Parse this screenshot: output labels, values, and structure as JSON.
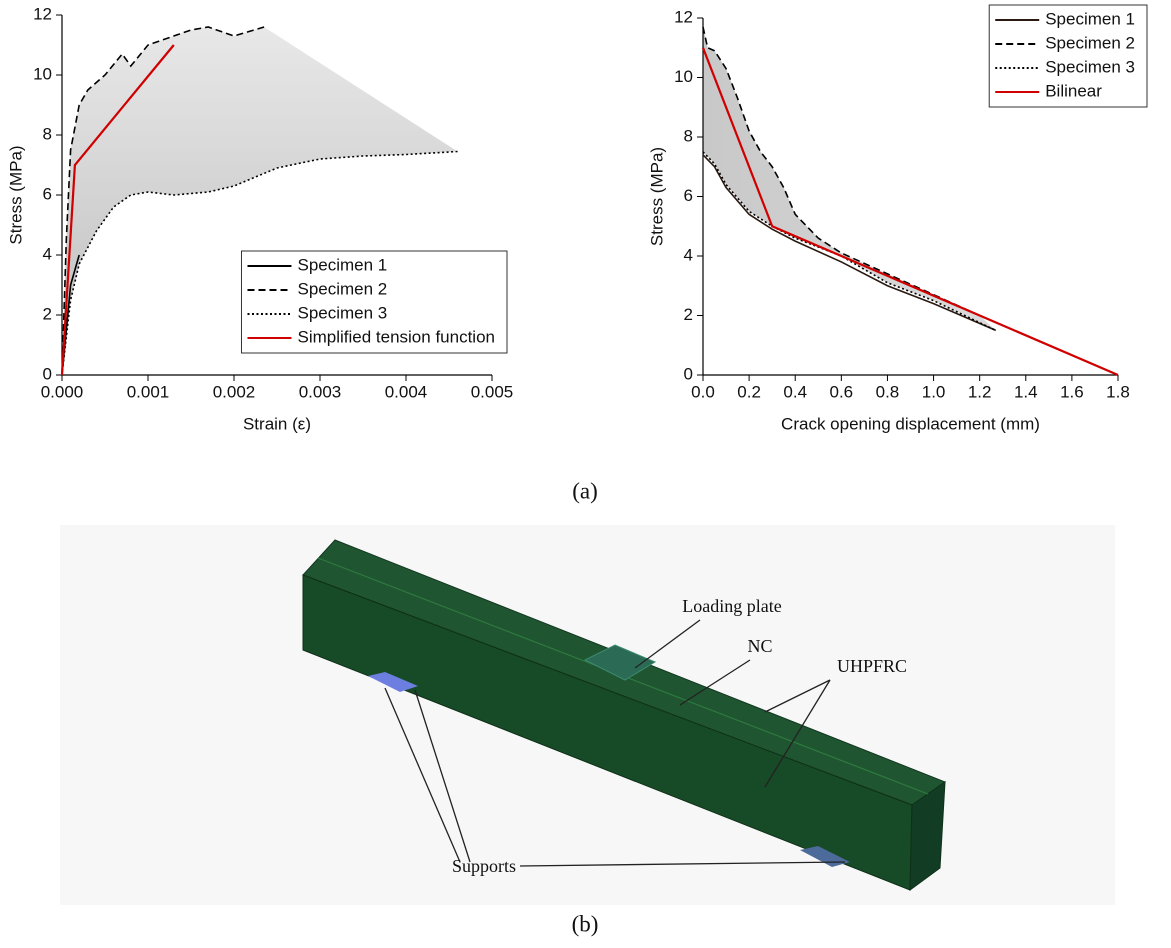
{
  "chart_data": [
    {
      "type": "line",
      "xlabel": "Strain (ε)",
      "ylabel": "Stress (MPa)",
      "xlim": [
        0,
        0.005
      ],
      "ylim": [
        0,
        12
      ],
      "xticks": [
        {
          "value": 0,
          "label": "0.000"
        },
        0.001,
        0.002,
        0.003,
        0.004,
        0.005
      ],
      "yticks": [
        0,
        2,
        4,
        6,
        8,
        10,
        12
      ],
      "legend": "lower right",
      "envelope": true,
      "series": [
        {
          "name": "Specimen 1",
          "color": "#000000",
          "dash": "solid",
          "x": [
            0,
            0.0001,
            0.0002
          ],
          "values": [
            0,
            3,
            4
          ]
        },
        {
          "name": "Specimen 2",
          "color": "#000000",
          "dash": "dashed",
          "x": [
            0,
            5e-05,
            0.0001,
            0.0002,
            0.0003,
            0.0005,
            0.0007,
            0.0008,
            0.001,
            0.0012,
            0.0015,
            0.0017,
            0.002,
            0.00235
          ],
          "values": [
            0,
            4.5,
            7.5,
            9.0,
            9.5,
            10.0,
            10.7,
            10.3,
            11.0,
            11.2,
            11.5,
            11.6,
            11.3,
            11.6
          ]
        },
        {
          "name": "Specimen 3",
          "color": "#000000",
          "dash": "dotted",
          "x": [
            0,
            0.0001,
            0.0002,
            0.0004,
            0.0006,
            0.0008,
            0.001,
            0.0013,
            0.0017,
            0.002,
            0.0025,
            0.003,
            0.0035,
            0.004,
            0.0046
          ],
          "values": [
            0,
            2.5,
            3.7,
            4.8,
            5.6,
            6.0,
            6.1,
            6.0,
            6.1,
            6.3,
            6.9,
            7.2,
            7.3,
            7.35,
            7.45
          ]
        },
        {
          "name": "Simplified tension function",
          "color": "#d00000",
          "dash": "solid",
          "x": [
            0,
            0.00015,
            0.0013
          ],
          "values": [
            0,
            7,
            11
          ]
        }
      ]
    },
    {
      "type": "line",
      "xlabel": "Crack opening displacement (mm)",
      "ylabel": "Stress (MPa)",
      "xlim": [
        0,
        1.8
      ],
      "ylim": [
        0,
        12
      ],
      "xticks": [
        {
          "value": 0,
          "label": "0.0"
        },
        0.2,
        0.4,
        0.6,
        0.8,
        {
          "value": 1,
          "label": "1.0"
        },
        1.2,
        1.4,
        1.6,
        1.8
      ],
      "yticks": [
        0,
        2,
        4,
        6,
        8,
        10,
        12
      ],
      "legend": "upper right",
      "envelope": true,
      "series": [
        {
          "name": "Specimen 1",
          "color": "#2a1a12",
          "dash": "solid",
          "x": [
            0,
            0.05,
            0.1,
            0.2,
            0.3,
            0.4,
            0.6,
            0.8,
            1.0,
            1.27
          ],
          "values": [
            7.4,
            7.0,
            6.3,
            5.4,
            4.9,
            4.5,
            3.8,
            3.0,
            2.4,
            1.5
          ]
        },
        {
          "name": "Specimen 2",
          "color": "#000000",
          "dash": "dashed",
          "x": [
            0,
            0.02,
            0.05,
            0.1,
            0.15,
            0.2,
            0.25,
            0.3,
            0.35,
            0.4,
            0.5,
            0.6,
            0.8,
            1.0,
            1.2
          ],
          "values": [
            11.7,
            11.0,
            10.9,
            10.3,
            9.3,
            8.2,
            7.5,
            7.0,
            6.3,
            5.4,
            4.6,
            4.1,
            3.4,
            2.7,
            2.0
          ]
        },
        {
          "name": "Specimen 3",
          "color": "#000000",
          "dash": "dotted",
          "x": [
            0,
            0.05,
            0.1,
            0.2,
            0.3,
            0.4,
            0.6,
            0.8,
            1.0,
            1.27
          ],
          "values": [
            7.5,
            7.1,
            6.4,
            5.5,
            5.0,
            4.6,
            4.0,
            3.1,
            2.5,
            1.5
          ]
        },
        {
          "name": "Bilinear",
          "color": "#d00000",
          "dash": "solid",
          "x": [
            0,
            0.3,
            1.8
          ],
          "values": [
            11,
            5,
            0
          ]
        }
      ]
    }
  ],
  "panel_labels": [
    "(a)",
    "(b)"
  ],
  "diagram": {
    "labels": [
      "Loading plate",
      "NC",
      "UHPFRC",
      "Supports"
    ]
  }
}
